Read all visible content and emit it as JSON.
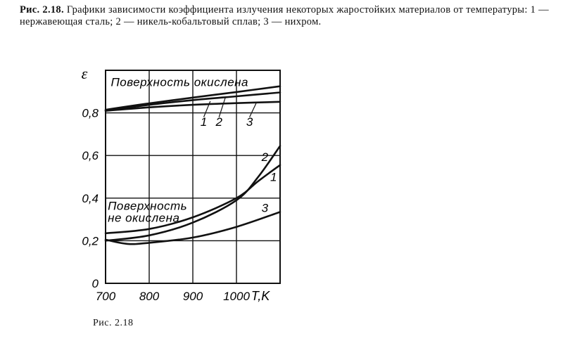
{
  "caption": {
    "label": "Рис. 2.18.",
    "text": "Графики зависимости коэффициента излучения некоторых жаростойких материалов от температуры: 1 — нержавеющая сталь; 2 — никель-кобальтовый сплав; 3 — нихром."
  },
  "figure_label": "Рис. 2.18",
  "chart_data": {
    "type": "line",
    "xlabel": "T,K",
    "ylabel": "ε",
    "xlim": [
      700,
      1100
    ],
    "ylim": [
      0,
      1.0
    ],
    "x_ticks": [
      "700",
      "800",
      "900",
      "1000"
    ],
    "y_ticks": [
      "0",
      "0,2",
      "0,4",
      "0,6",
      "0,8"
    ],
    "grid": true,
    "annotations": [
      "Поверхность окислена",
      "Поверхность",
      "не окислена"
    ],
    "series": [
      {
        "name": "1",
        "group": "oxidized",
        "x": [
          700,
          800,
          900,
          1000,
          1100
        ],
        "y": [
          0.81,
          0.838,
          0.86,
          0.878,
          0.896
        ]
      },
      {
        "name": "2",
        "group": "oxidized",
        "x": [
          700,
          800,
          900,
          1000,
          1100
        ],
        "y": [
          0.815,
          0.845,
          0.872,
          0.898,
          0.925
        ]
      },
      {
        "name": "3",
        "group": "oxidized",
        "x": [
          700,
          800,
          900,
          1000,
          1100
        ],
        "y": [
          0.81,
          0.826,
          0.838,
          0.846,
          0.852
        ]
      },
      {
        "name": "1",
        "group": "non-oxidized",
        "x": [
          700,
          800,
          900,
          1000,
          1050,
          1100
        ],
        "y": [
          0.235,
          0.255,
          0.31,
          0.4,
          0.48,
          0.555
        ]
      },
      {
        "name": "2",
        "group": "non-oxidized",
        "x": [
          700,
          800,
          900,
          1000,
          1050,
          1100
        ],
        "y": [
          0.2,
          0.225,
          0.285,
          0.39,
          0.5,
          0.645
        ]
      },
      {
        "name": "3",
        "group": "non-oxidized",
        "x": [
          700,
          750,
          800,
          900,
          1000,
          1100
        ],
        "y": [
          0.205,
          0.185,
          0.19,
          0.215,
          0.265,
          0.335
        ]
      }
    ],
    "series_labels": [
      {
        "text": "1",
        "at": [
          925,
          0.74
        ]
      },
      {
        "text": "2",
        "at": [
          960,
          0.74
        ]
      },
      {
        "text": "3",
        "at": [
          1030,
          0.74
        ]
      },
      {
        "text": "2",
        "at": [
          1065,
          0.575
        ]
      },
      {
        "text": "1",
        "at": [
          1085,
          0.48
        ]
      },
      {
        "text": "3",
        "at": [
          1065,
          0.335
        ]
      }
    ]
  }
}
